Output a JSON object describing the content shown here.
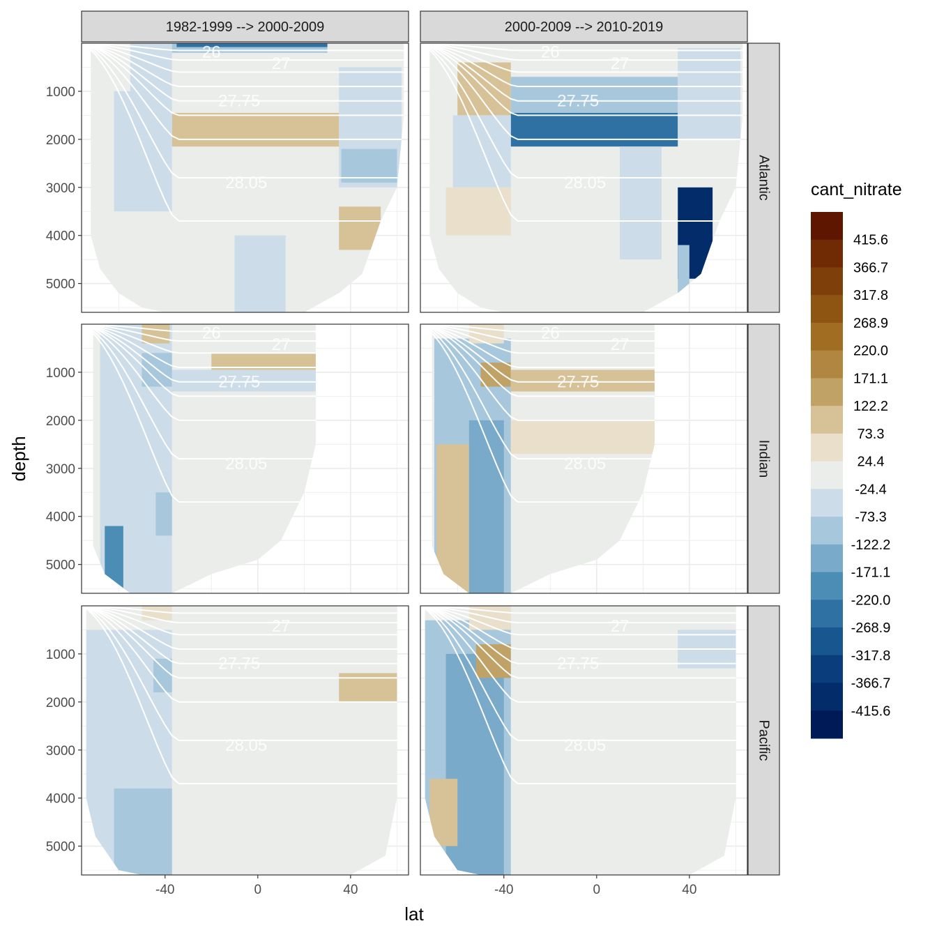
{
  "chart_data": {
    "type": "heatmap",
    "title": "",
    "xlabel": "lat",
    "ylabel": "depth",
    "x_ticks": [
      -40,
      0,
      40
    ],
    "y_ticks": [
      1000,
      2000,
      3000,
      4000,
      5000
    ],
    "xlim": [
      -76,
      65
    ],
    "ylim": [
      5600,
      0
    ],
    "column_facets": [
      "1982-1999 --> 2000-2009",
      "2000-2009 --> 2010-2019"
    ],
    "row_facets": [
      "Atlantic",
      "Indian",
      "Pacific"
    ],
    "legend": {
      "title": "cant_nitrate",
      "placement": "right",
      "breaks": [
        "415.6",
        "366.7",
        "317.8",
        "268.9",
        "220.0",
        "171.1",
        "122.2",
        "73.3",
        "24.4",
        "-24.4",
        "-73.3",
        "-122.2",
        "-171.1",
        "-220.0",
        "-268.9",
        "-317.8",
        "-366.7",
        "-415.6"
      ],
      "colors": [
        "#5f1600",
        "#702a04",
        "#7f3f0a",
        "#8e5512",
        "#a06d22",
        "#b08640",
        "#c1a266",
        "#d7c196",
        "#e9dfcb",
        "#ebedea",
        "#ccdde9",
        "#a6c7dc",
        "#79aac9",
        "#4c8db6",
        "#2f71a3",
        "#18568f",
        "#093d7b",
        "#032d6a",
        "#001a57"
      ]
    },
    "isoline_labels": [
      {
        "facet": [
          0,
          0
        ],
        "labels": [
          "26",
          "27",
          "27.75",
          "28.05"
        ]
      },
      {
        "facet": [
          1,
          0
        ],
        "labels": [
          "26",
          "27",
          "27.75",
          "28.05"
        ]
      },
      {
        "facet": [
          0,
          1
        ],
        "labels": [
          "26",
          "27",
          "27.75",
          "28.05"
        ]
      },
      {
        "facet": [
          1,
          1
        ],
        "labels": [
          "26",
          "27",
          "27.75",
          "28.05"
        ]
      },
      {
        "facet": [
          0,
          2
        ],
        "labels": [
          "27",
          "27.75",
          "28.05"
        ]
      },
      {
        "facet": [
          1,
          2
        ],
        "labels": [
          "27",
          "27.75",
          "28.05"
        ]
      }
    ],
    "note_values": "cant_nitrate field per basin/period: blocks of lat range [lat_min, lat_max] x depth range [d_top, d_bottom] with a legend bin index",
    "panels": [
      {
        "col": 0,
        "row": 0,
        "basin": "Atlantic",
        "period": "1982-1999 --> 2000-2009",
        "bottom_lat_profile": [
          [
            -72,
            4000
          ],
          [
            -68,
            4700
          ],
          [
            -60,
            5200
          ],
          [
            -50,
            5500
          ],
          [
            -40,
            5600
          ],
          [
            -20,
            5600
          ],
          [
            0,
            5600
          ],
          [
            20,
            5600
          ],
          [
            35,
            5200
          ],
          [
            45,
            4800
          ],
          [
            53,
            3700
          ],
          [
            60,
            3000
          ],
          [
            63,
            1500
          ]
        ],
        "cells": [
          {
            "lat": [
              -76,
              64
            ],
            "depth": [
              0,
              5600
            ],
            "bin": 9
          },
          {
            "lat": [
              -55,
              -37
            ],
            "depth": [
              0,
              1000
            ],
            "bin": 10
          },
          {
            "lat": [
              -37,
              30
            ],
            "depth": [
              0,
              200
            ],
            "bin": 11
          },
          {
            "lat": [
              -35,
              30
            ],
            "depth": [
              0,
              80
            ],
            "bin": 14
          },
          {
            "lat": [
              -37,
              35
            ],
            "depth": [
              1450,
              2150
            ],
            "bin": 7
          },
          {
            "lat": [
              35,
              62
            ],
            "depth": [
              500,
              3000
            ],
            "bin": 10
          },
          {
            "lat": [
              36,
              60
            ],
            "depth": [
              2200,
              2900
            ],
            "bin": 11
          },
          {
            "lat": [
              35,
              53
            ],
            "depth": [
              3400,
              4300
            ],
            "bin": 7
          },
          {
            "lat": [
              -10,
              12
            ],
            "depth": [
              4000,
              5600
            ],
            "bin": 10
          },
          {
            "lat": [
              -62,
              -37
            ],
            "depth": [
              1000,
              3500
            ],
            "bin": 10
          }
        ]
      },
      {
        "col": 1,
        "row": 0,
        "basin": "Atlantic",
        "period": "2000-2009 --> 2010-2019",
        "bottom_lat_profile": [
          [
            -72,
            4000
          ],
          [
            -68,
            4700
          ],
          [
            -60,
            5200
          ],
          [
            -50,
            5500
          ],
          [
            -40,
            5600
          ],
          [
            -20,
            5600
          ],
          [
            0,
            5600
          ],
          [
            20,
            5600
          ],
          [
            35,
            5200
          ],
          [
            45,
            4800
          ],
          [
            53,
            3700
          ],
          [
            60,
            3000
          ],
          [
            63,
            1500
          ]
        ],
        "cells": [
          {
            "lat": [
              -76,
              64
            ],
            "depth": [
              0,
              5600
            ],
            "bin": 9
          },
          {
            "lat": [
              -60,
              -37
            ],
            "depth": [
              400,
              1500
            ],
            "bin": 7
          },
          {
            "lat": [
              -37,
              35
            ],
            "depth": [
              700,
              1450
            ],
            "bin": 11
          },
          {
            "lat": [
              -37,
              35
            ],
            "depth": [
              1450,
              2150
            ],
            "bin": 14
          },
          {
            "lat": [
              35,
              62
            ],
            "depth": [
              100,
              2000
            ],
            "bin": 10
          },
          {
            "lat": [
              35,
              50
            ],
            "depth": [
              3000,
              4900
            ],
            "bin": 17
          },
          {
            "lat": [
              35,
              40
            ],
            "depth": [
              4200,
              5500
            ],
            "bin": 11
          },
          {
            "lat": [
              10,
              28
            ],
            "depth": [
              2150,
              4500
            ],
            "bin": 10
          },
          {
            "lat": [
              -62,
              -37
            ],
            "depth": [
              1500,
              3000
            ],
            "bin": 10
          },
          {
            "lat": [
              -65,
              -37
            ],
            "depth": [
              3000,
              4000
            ],
            "bin": 8
          }
        ]
      },
      {
        "col": 0,
        "row": 1,
        "basin": "Indian",
        "period": "1982-1999 --> 2000-2009",
        "bottom_lat_profile": [
          [
            -72,
            4500
          ],
          [
            -66,
            5200
          ],
          [
            -55,
            5600
          ],
          [
            -45,
            5600
          ],
          [
            -37,
            5600
          ],
          [
            -20,
            5200
          ],
          [
            0,
            4900
          ],
          [
            10,
            4500
          ],
          [
            20,
            3500
          ],
          [
            25,
            2500
          ]
        ],
        "cells": [
          {
            "lat": [
              -71,
              25
            ],
            "depth": [
              0,
              5600
            ],
            "bin": 9
          },
          {
            "lat": [
              -68,
              -37
            ],
            "depth": [
              0,
              5600
            ],
            "bin": 10
          },
          {
            "lat": [
              -66,
              -58
            ],
            "depth": [
              4200,
              5600
            ],
            "bin": 13
          },
          {
            "lat": [
              -50,
              -37
            ],
            "depth": [
              600,
              1300
            ],
            "bin": 11
          },
          {
            "lat": [
              -44,
              -37
            ],
            "depth": [
              3500,
              4400
            ],
            "bin": 11
          },
          {
            "lat": [
              -50,
              -38
            ],
            "depth": [
              0,
              400
            ],
            "bin": 7
          },
          {
            "lat": [
              -20,
              25
            ],
            "depth": [
              600,
              950
            ],
            "bin": 7
          },
          {
            "lat": [
              -37,
              25
            ],
            "depth": [
              950,
              1400
            ],
            "bin": 10
          }
        ]
      },
      {
        "col": 1,
        "row": 1,
        "basin": "Indian",
        "period": "2000-2009 --> 2010-2019",
        "bottom_lat_profile": [
          [
            -72,
            4500
          ],
          [
            -66,
            5200
          ],
          [
            -55,
            5600
          ],
          [
            -45,
            5600
          ],
          [
            -37,
            5600
          ],
          [
            -20,
            5200
          ],
          [
            0,
            4900
          ],
          [
            10,
            4500
          ],
          [
            20,
            3500
          ],
          [
            25,
            2500
          ]
        ],
        "cells": [
          {
            "lat": [
              -71,
              25
            ],
            "depth": [
              0,
              5600
            ],
            "bin": 9
          },
          {
            "lat": [
              -70,
              -37
            ],
            "depth": [
              300,
              5600
            ],
            "bin": 11
          },
          {
            "lat": [
              -69,
              -55
            ],
            "depth": [
              2500,
              5600
            ],
            "bin": 7
          },
          {
            "lat": [
              -55,
              -40
            ],
            "depth": [
              2000,
              5600
            ],
            "bin": 12
          },
          {
            "lat": [
              -50,
              -37
            ],
            "depth": [
              800,
              1300
            ],
            "bin": 6
          },
          {
            "lat": [
              -37,
              25
            ],
            "depth": [
              950,
              1400
            ],
            "bin": 7
          },
          {
            "lat": [
              -37,
              25
            ],
            "depth": [
              2000,
              2700
            ],
            "bin": 8
          },
          {
            "lat": [
              -55,
              -40
            ],
            "depth": [
              0,
              400
            ],
            "bin": 8
          }
        ]
      },
      {
        "col": 0,
        "row": 2,
        "basin": "Pacific",
        "period": "1982-1999 --> 2000-2009",
        "bottom_lat_profile": [
          [
            -74,
            4000
          ],
          [
            -70,
            4800
          ],
          [
            -60,
            5500
          ],
          [
            -50,
            5600
          ],
          [
            -37,
            5600
          ],
          [
            -20,
            5600
          ],
          [
            0,
            5600
          ],
          [
            20,
            5600
          ],
          [
            40,
            5600
          ],
          [
            55,
            5200
          ],
          [
            60,
            4000
          ]
        ],
        "cells": [
          {
            "lat": [
              -76,
              61
            ],
            "depth": [
              0,
              5600
            ],
            "bin": 9
          },
          {
            "lat": [
              -76,
              -37
            ],
            "depth": [
              500,
              5600
            ],
            "bin": 10
          },
          {
            "lat": [
              -62,
              -37
            ],
            "depth": [
              3800,
              5600
            ],
            "bin": 11
          },
          {
            "lat": [
              -50,
              -37
            ],
            "depth": [
              0,
              300
            ],
            "bin": 8
          },
          {
            "lat": [
              35,
              61
            ],
            "depth": [
              1400,
              2000
            ],
            "bin": 7
          },
          {
            "lat": [
              -45,
              -37
            ],
            "depth": [
              1100,
              1800
            ],
            "bin": 11
          }
        ]
      },
      {
        "col": 1,
        "row": 2,
        "basin": "Pacific",
        "period": "2000-2009 --> 2010-2019",
        "bottom_lat_profile": [
          [
            -74,
            4000
          ],
          [
            -70,
            4800
          ],
          [
            -60,
            5500
          ],
          [
            -50,
            5600
          ],
          [
            -37,
            5600
          ],
          [
            -20,
            5600
          ],
          [
            0,
            5600
          ],
          [
            20,
            5600
          ],
          [
            40,
            5600
          ],
          [
            55,
            5200
          ],
          [
            60,
            4000
          ]
        ],
        "cells": [
          {
            "lat": [
              -76,
              61
            ],
            "depth": [
              0,
              5600
            ],
            "bin": 9
          },
          {
            "lat": [
              -76,
              -37
            ],
            "depth": [
              300,
              5600
            ],
            "bin": 11
          },
          {
            "lat": [
              -65,
              -40
            ],
            "depth": [
              1000,
              5600
            ],
            "bin": 12
          },
          {
            "lat": [
              -72,
              -60
            ],
            "depth": [
              3600,
              5000
            ],
            "bin": 7
          },
          {
            "lat": [
              -52,
              -37
            ],
            "depth": [
              800,
              1500
            ],
            "bin": 6
          },
          {
            "lat": [
              -55,
              -37
            ],
            "depth": [
              0,
              500
            ],
            "bin": 8
          },
          {
            "lat": [
              35,
              61
            ],
            "depth": [
              500,
              1300
            ],
            "bin": 10
          }
        ]
      }
    ]
  }
}
